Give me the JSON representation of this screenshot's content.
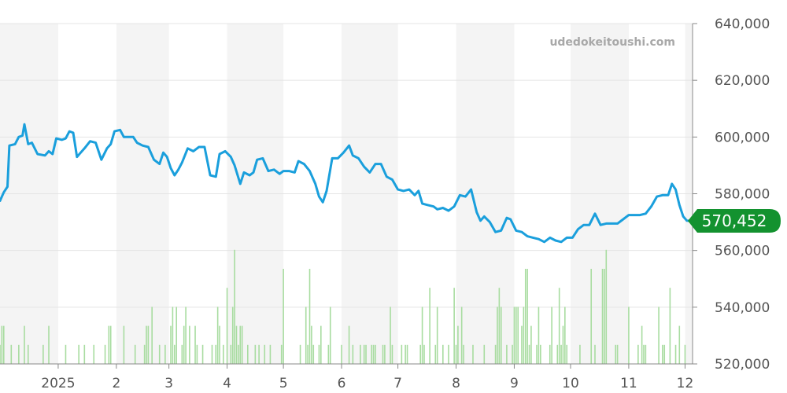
{
  "site": {
    "watermark": "udedokeitoushi.com"
  },
  "colors": {
    "line": "#1a9fdc",
    "volume": "#a8dca0",
    "badge": "#13922f",
    "band": "#f4f4f4",
    "grid": "#e4e4e4",
    "axis": "#888888"
  },
  "chart_data": {
    "type": "line",
    "title": "",
    "xlabel": "",
    "ylabel": "",
    "ylim": [
      520000,
      640000
    ],
    "y_ticks": [
      "640,000",
      "620,000",
      "600,000",
      "580,000",
      "560,000",
      "540,000",
      "520,000"
    ],
    "y_tick_values": [
      640000,
      620000,
      600000,
      580000,
      560000,
      540000,
      520000
    ],
    "x_range": [
      "2024-12-01",
      "2025-12-05"
    ],
    "x_ticks": [
      {
        "label": "2025",
        "date": "2025-01-01"
      },
      {
        "label": "2",
        "date": "2025-02-01"
      },
      {
        "label": "3",
        "date": "2025-03-01"
      },
      {
        "label": "4",
        "date": "2025-04-01"
      },
      {
        "label": "5",
        "date": "2025-05-01"
      },
      {
        "label": "6",
        "date": "2025-06-01"
      },
      {
        "label": "7",
        "date": "2025-07-01"
      },
      {
        "label": "8",
        "date": "2025-08-01"
      },
      {
        "label": "9",
        "date": "2025-09-01"
      },
      {
        "label": "10",
        "date": "2025-10-01"
      },
      {
        "label": "11",
        "date": "2025-11-01"
      },
      {
        "label": "12",
        "date": "2025-12-01"
      }
    ],
    "grid": true,
    "current_value": 570452,
    "current_value_label": "570,452",
    "series": [
      {
        "values": [
          [
            "2024-12-01",
            577500
          ],
          [
            "2024-12-03",
            580500
          ],
          [
            "2024-12-05",
            582500
          ],
          [
            "2024-12-06",
            597000
          ],
          [
            "2024-12-09",
            597500
          ],
          [
            "2024-12-11",
            600000
          ],
          [
            "2024-12-13",
            600500
          ],
          [
            "2024-12-14",
            604500
          ],
          [
            "2024-12-16",
            597500
          ],
          [
            "2024-12-18",
            598000
          ],
          [
            "2024-12-21",
            594000
          ],
          [
            "2024-12-25",
            593500
          ],
          [
            "2024-12-27",
            595000
          ],
          [
            "2024-12-29",
            594000
          ],
          [
            "2024-12-31",
            599500
          ],
          [
            "2025-01-03",
            599000
          ],
          [
            "2025-01-05",
            599500
          ],
          [
            "2025-01-07",
            602000
          ],
          [
            "2025-01-09",
            601500
          ],
          [
            "2025-01-11",
            593000
          ],
          [
            "2025-01-13",
            594500
          ],
          [
            "2025-01-15",
            596000
          ],
          [
            "2025-01-18",
            598500
          ],
          [
            "2025-01-21",
            598000
          ],
          [
            "2025-01-24",
            592000
          ],
          [
            "2025-01-27",
            596000
          ],
          [
            "2025-01-29",
            597500
          ],
          [
            "2025-01-31",
            602000
          ],
          [
            "2025-02-03",
            602500
          ],
          [
            "2025-02-05",
            600000
          ],
          [
            "2025-02-10",
            600000
          ],
          [
            "2025-02-12",
            598000
          ],
          [
            "2025-02-15",
            597000
          ],
          [
            "2025-02-18",
            596500
          ],
          [
            "2025-02-21",
            592000
          ],
          [
            "2025-02-24",
            590500
          ],
          [
            "2025-02-26",
            594500
          ],
          [
            "2025-02-28",
            593000
          ],
          [
            "2025-03-02",
            589000
          ],
          [
            "2025-03-04",
            586500
          ],
          [
            "2025-03-06",
            588500
          ],
          [
            "2025-03-08",
            591000
          ],
          [
            "2025-03-11",
            596000
          ],
          [
            "2025-03-14",
            595000
          ],
          [
            "2025-03-17",
            596500
          ],
          [
            "2025-03-20",
            596500
          ],
          [
            "2025-03-23",
            586500
          ],
          [
            "2025-03-26",
            586000
          ],
          [
            "2025-03-28",
            594000
          ],
          [
            "2025-03-31",
            595000
          ],
          [
            "2025-04-03",
            593000
          ],
          [
            "2025-04-05",
            590000
          ],
          [
            "2025-04-08",
            583500
          ],
          [
            "2025-04-10",
            587500
          ],
          [
            "2025-04-13",
            586500
          ],
          [
            "2025-04-15",
            587500
          ],
          [
            "2025-04-17",
            592000
          ],
          [
            "2025-04-20",
            592500
          ],
          [
            "2025-04-23",
            588000
          ],
          [
            "2025-04-26",
            588500
          ],
          [
            "2025-04-29",
            587000
          ],
          [
            "2025-05-01",
            588000
          ],
          [
            "2025-05-04",
            588000
          ],
          [
            "2025-05-07",
            587500
          ],
          [
            "2025-05-09",
            591500
          ],
          [
            "2025-05-12",
            590500
          ],
          [
            "2025-05-15",
            588000
          ],
          [
            "2025-05-18",
            583500
          ],
          [
            "2025-05-20",
            579000
          ],
          [
            "2025-05-22",
            577000
          ],
          [
            "2025-05-24",
            581000
          ],
          [
            "2025-05-27",
            592500
          ],
          [
            "2025-05-30",
            592500
          ],
          [
            "2025-06-02",
            594500
          ],
          [
            "2025-06-05",
            597000
          ],
          [
            "2025-06-07",
            593500
          ],
          [
            "2025-06-10",
            592500
          ],
          [
            "2025-06-13",
            589500
          ],
          [
            "2025-06-16",
            587500
          ],
          [
            "2025-06-19",
            590500
          ],
          [
            "2025-06-22",
            590500
          ],
          [
            "2025-06-25",
            586000
          ],
          [
            "2025-06-28",
            585000
          ],
          [
            "2025-07-01",
            581500
          ],
          [
            "2025-07-04",
            581000
          ],
          [
            "2025-07-07",
            581500
          ],
          [
            "2025-07-10",
            579500
          ],
          [
            "2025-07-12",
            581000
          ],
          [
            "2025-07-14",
            576500
          ],
          [
            "2025-07-17",
            576000
          ],
          [
            "2025-07-20",
            575500
          ],
          [
            "2025-07-22",
            574500
          ],
          [
            "2025-07-25",
            575000
          ],
          [
            "2025-07-28",
            574000
          ],
          [
            "2025-07-31",
            575500
          ],
          [
            "2025-08-03",
            579500
          ],
          [
            "2025-08-06",
            579000
          ],
          [
            "2025-08-09",
            581500
          ],
          [
            "2025-08-12",
            573500
          ],
          [
            "2025-08-14",
            570500
          ],
          [
            "2025-08-16",
            572000
          ],
          [
            "2025-08-19",
            570000
          ],
          [
            "2025-08-22",
            566500
          ],
          [
            "2025-08-25",
            567000
          ],
          [
            "2025-08-28",
            571500
          ],
          [
            "2025-08-30",
            571000
          ],
          [
            "2025-09-02",
            567000
          ],
          [
            "2025-09-05",
            566500
          ],
          [
            "2025-09-08",
            565000
          ],
          [
            "2025-09-11",
            564500
          ],
          [
            "2025-09-14",
            564000
          ],
          [
            "2025-09-17",
            563000
          ],
          [
            "2025-09-20",
            564500
          ],
          [
            "2025-09-23",
            563500
          ],
          [
            "2025-09-26",
            563000
          ],
          [
            "2025-09-29",
            564500
          ],
          [
            "2025-10-02",
            564500
          ],
          [
            "2025-10-05",
            567500
          ],
          [
            "2025-10-08",
            569000
          ],
          [
            "2025-10-11",
            569000
          ],
          [
            "2025-10-14",
            573000
          ],
          [
            "2025-10-17",
            569000
          ],
          [
            "2025-10-20",
            569500
          ],
          [
            "2025-10-23",
            569500
          ],
          [
            "2025-10-26",
            569500
          ],
          [
            "2025-10-29",
            571000
          ],
          [
            "2025-11-01",
            572500
          ],
          [
            "2025-11-04",
            572500
          ],
          [
            "2025-11-07",
            572500
          ],
          [
            "2025-11-10",
            573000
          ],
          [
            "2025-11-13",
            575500
          ],
          [
            "2025-11-16",
            579000
          ],
          [
            "2025-11-19",
            579500
          ],
          [
            "2025-11-22",
            579500
          ],
          [
            "2025-11-24",
            583500
          ],
          [
            "2025-11-26",
            581500
          ],
          [
            "2025-11-28",
            576000
          ],
          [
            "2025-11-30",
            572000
          ],
          [
            "2025-12-02",
            570500
          ],
          [
            "2025-12-05",
            570452
          ]
        ]
      }
    ],
    "volume_bars": [
      [
        "2024-12-01",
        1
      ],
      [
        "2024-12-02",
        2
      ],
      [
        "2024-12-03",
        2
      ],
      [
        "2024-12-07",
        1
      ],
      [
        "2024-12-11",
        1
      ],
      [
        "2024-12-14",
        2
      ],
      [
        "2024-12-16",
        1
      ],
      [
        "2024-12-24",
        1
      ],
      [
        "2024-12-27",
        2
      ],
      [
        "2025-01-05",
        1
      ],
      [
        "2025-01-12",
        1
      ],
      [
        "2025-01-15",
        1
      ],
      [
        "2025-01-20",
        1
      ],
      [
        "2025-01-26",
        1
      ],
      [
        "2025-01-28",
        2
      ],
      [
        "2025-01-29",
        2
      ],
      [
        "2025-02-05",
        2
      ],
      [
        "2025-02-11",
        1
      ],
      [
        "2025-02-16",
        1
      ],
      [
        "2025-02-17",
        2
      ],
      [
        "2025-02-18",
        2
      ],
      [
        "2025-02-20",
        3
      ],
      [
        "2025-02-24",
        1
      ],
      [
        "2025-02-27",
        1
      ],
      [
        "2025-03-02",
        2
      ],
      [
        "2025-03-03",
        3
      ],
      [
        "2025-03-04",
        1
      ],
      [
        "2025-03-05",
        3
      ],
      [
        "2025-03-08",
        1
      ],
      [
        "2025-03-09",
        2
      ],
      [
        "2025-03-10",
        3
      ],
      [
        "2025-03-12",
        2
      ],
      [
        "2025-03-15",
        2
      ],
      [
        "2025-03-16",
        1
      ],
      [
        "2025-03-19",
        1
      ],
      [
        "2025-03-24",
        1
      ],
      [
        "2025-03-26",
        1
      ],
      [
        "2025-03-27",
        3
      ],
      [
        "2025-03-28",
        2
      ],
      [
        "2025-03-30",
        1
      ],
      [
        "2025-04-01",
        4
      ],
      [
        "2025-04-03",
        1
      ],
      [
        "2025-04-04",
        3
      ],
      [
        "2025-04-05",
        6
      ],
      [
        "2025-04-06",
        2
      ],
      [
        "2025-04-07",
        1
      ],
      [
        "2025-04-08",
        2
      ],
      [
        "2025-04-09",
        2
      ],
      [
        "2025-04-12",
        1
      ],
      [
        "2025-04-16",
        1
      ],
      [
        "2025-04-18",
        1
      ],
      [
        "2025-04-21",
        1
      ],
      [
        "2025-04-24",
        1
      ],
      [
        "2025-04-30",
        1
      ],
      [
        "2025-05-01",
        5
      ],
      [
        "2025-05-10",
        1
      ],
      [
        "2025-05-13",
        3
      ],
      [
        "2025-05-14",
        1
      ],
      [
        "2025-05-15",
        5
      ],
      [
        "2025-05-16",
        2
      ],
      [
        "2025-05-17",
        1
      ],
      [
        "2025-05-20",
        1
      ],
      [
        "2025-05-21",
        2
      ],
      [
        "2025-05-25",
        1
      ],
      [
        "2025-05-26",
        3
      ],
      [
        "2025-06-01",
        1
      ],
      [
        "2025-06-05",
        2
      ],
      [
        "2025-06-07",
        1
      ],
      [
        "2025-06-11",
        1
      ],
      [
        "2025-06-13",
        1
      ],
      [
        "2025-06-14",
        1
      ],
      [
        "2025-06-17",
        1
      ],
      [
        "2025-06-18",
        1
      ],
      [
        "2025-06-19",
        1
      ],
      [
        "2025-06-23",
        1
      ],
      [
        "2025-06-24",
        1
      ],
      [
        "2025-06-27",
        3
      ],
      [
        "2025-06-28",
        1
      ],
      [
        "2025-07-03",
        1
      ],
      [
        "2025-07-05",
        1
      ],
      [
        "2025-07-06",
        1
      ],
      [
        "2025-07-13",
        1
      ],
      [
        "2025-07-14",
        3
      ],
      [
        "2025-07-15",
        1
      ],
      [
        "2025-07-18",
        4
      ],
      [
        "2025-07-21",
        1
      ],
      [
        "2025-07-22",
        3
      ],
      [
        "2025-07-25",
        1
      ],
      [
        "2025-07-28",
        1
      ],
      [
        "2025-07-31",
        4
      ],
      [
        "2025-08-01",
        1
      ],
      [
        "2025-08-02",
        2
      ],
      [
        "2025-08-04",
        3
      ],
      [
        "2025-08-05",
        1
      ],
      [
        "2025-08-10",
        1
      ],
      [
        "2025-08-16",
        1
      ],
      [
        "2025-08-22",
        1
      ],
      [
        "2025-08-23",
        3
      ],
      [
        "2025-08-24",
        4
      ],
      [
        "2025-08-25",
        3
      ],
      [
        "2025-08-28",
        1
      ],
      [
        "2025-08-31",
        1
      ],
      [
        "2025-09-01",
        3
      ],
      [
        "2025-09-02",
        3
      ],
      [
        "2025-09-03",
        3
      ],
      [
        "2025-09-05",
        2
      ],
      [
        "2025-09-06",
        3
      ],
      [
        "2025-09-07",
        5
      ],
      [
        "2025-09-08",
        5
      ],
      [
        "2025-09-09",
        1
      ],
      [
        "2025-09-10",
        2
      ],
      [
        "2025-09-13",
        1
      ],
      [
        "2025-09-14",
        3
      ],
      [
        "2025-09-15",
        1
      ],
      [
        "2025-09-20",
        1
      ],
      [
        "2025-09-21",
        3
      ],
      [
        "2025-09-24",
        1
      ],
      [
        "2025-09-25",
        4
      ],
      [
        "2025-09-26",
        1
      ],
      [
        "2025-09-27",
        2
      ],
      [
        "2025-09-28",
        3
      ],
      [
        "2025-09-29",
        1
      ],
      [
        "2025-10-06",
        1
      ],
      [
        "2025-10-12",
        5
      ],
      [
        "2025-10-14",
        1
      ],
      [
        "2025-10-18",
        5
      ],
      [
        "2025-10-19",
        5
      ],
      [
        "2025-10-20",
        6
      ],
      [
        "2025-10-25",
        1
      ],
      [
        "2025-10-26",
        1
      ],
      [
        "2025-11-01",
        3
      ],
      [
        "2025-11-06",
        1
      ],
      [
        "2025-11-08",
        2
      ],
      [
        "2025-11-09",
        1
      ],
      [
        "2025-11-10",
        1
      ],
      [
        "2025-11-17",
        3
      ],
      [
        "2025-11-19",
        1
      ],
      [
        "2025-11-20",
        1
      ],
      [
        "2025-11-23",
        4
      ],
      [
        "2025-11-26",
        1
      ],
      [
        "2025-11-28",
        2
      ],
      [
        "2025-12-01",
        1
      ]
    ]
  }
}
